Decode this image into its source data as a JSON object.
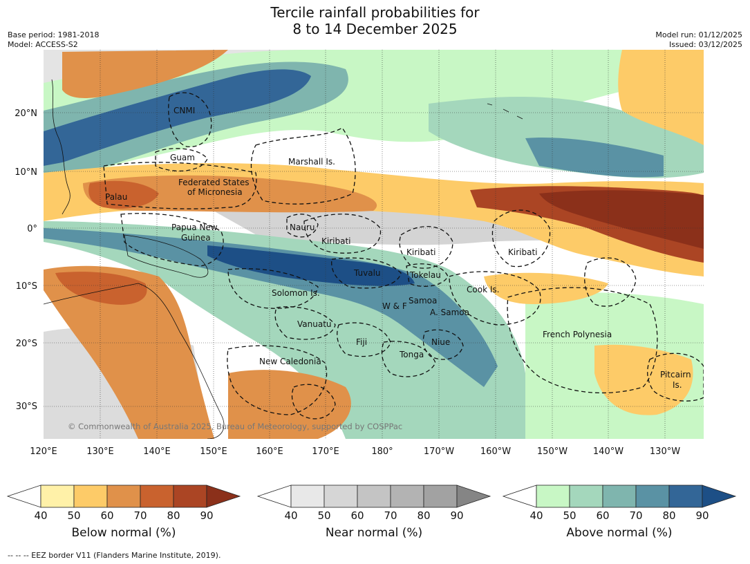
{
  "header": {
    "title_line1": "Tercile rainfall probabilities for",
    "title_line2": "8 to 14 December 2025",
    "base_period": "Base period: 1981-2018",
    "model": "Model: ACCESS-S2",
    "model_run": "Model run: 01/12/2025",
    "issued": "Issued: 03/12/2025"
  },
  "map": {
    "lat_labels": [
      "20°N",
      "10°N",
      "0°",
      "10°S",
      "20°S",
      "30°S"
    ],
    "lon_labels": [
      "120°E",
      "130°E",
      "140°E",
      "150°E",
      "160°E",
      "170°E",
      "180°",
      "170°W",
      "160°W",
      "150°W",
      "140°W",
      "130°W"
    ],
    "regions": [
      "CNMI",
      "Guam",
      "Marshall Is.",
      "Federated States",
      "of Micronesia",
      "Palau",
      "Papua New",
      "Guinea",
      "Nauru",
      "Kiribati",
      "Kiribati",
      "Kiribati",
      "Tuvalu",
      "Tokelau",
      "Cook Is.",
      "Solomon Is.",
      "W & F",
      "Samoa",
      "A. Samoa",
      "Vanuatu",
      "Fiji",
      "Niue",
      "Tonga",
      "French Polynesia",
      "New Caledonia",
      "Pitcairn",
      "Is."
    ],
    "copyright": "© Commonwealth of Australia 2025, Bureau of Meteorology, supported by COSPPac"
  },
  "colorbars": [
    {
      "label": "Below normal (%)",
      "ticks": [
        "40",
        "50",
        "60",
        "70",
        "80",
        "90"
      ],
      "colors": [
        "#fff1a8",
        "#fdcb68",
        "#e0914a",
        "#c9622e",
        "#ab4524",
        "#8b301a"
      ]
    },
    {
      "label": "Near normal (%)",
      "ticks": [
        "40",
        "50",
        "60",
        "70",
        "80",
        "90"
      ],
      "colors": [
        "#e8e8e8",
        "#d6d6d6",
        "#c4c4c4",
        "#b3b3b3",
        "#a2a2a2",
        "#858585"
      ]
    },
    {
      "label": "Above normal (%)",
      "ticks": [
        "40",
        "50",
        "60",
        "70",
        "80",
        "90"
      ],
      "colors": [
        "#c8f7c5",
        "#a4d7bc",
        "#7fb5ae",
        "#5a92a4",
        "#336697",
        "#1d4f86"
      ]
    }
  ],
  "footnote": "--  --  -- EEZ border V11 (Flanders Marine Institute, 2019)."
}
